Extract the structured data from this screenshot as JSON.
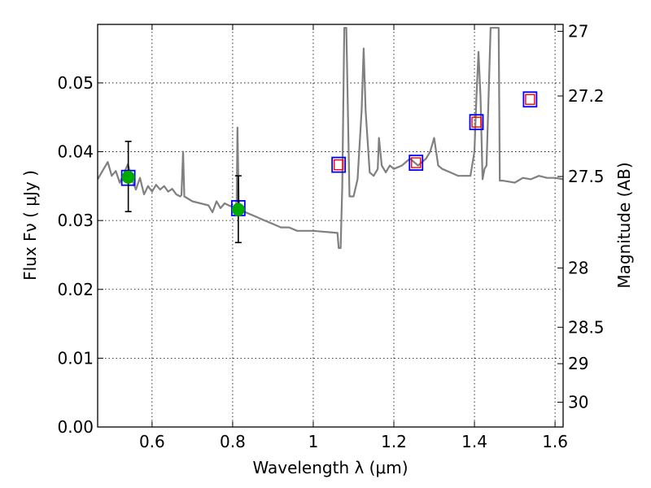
{
  "chart_data": {
    "type": "line",
    "xlabel": "Wavelength  λ (μm)",
    "ylabel": "Flux  Fν  ( μJy )",
    "y2label": "Magnitude (AB)",
    "xlim": [
      0.465,
      1.62
    ],
    "ylim": [
      0.0,
      0.0585
    ],
    "grid": true,
    "x_ticks": [
      0.6,
      0.8,
      1.0,
      1.2,
      1.4,
      1.6
    ],
    "x_tick_labels": [
      "0.6",
      "0.8",
      "1",
      "1.2",
      "1.4",
      "1.6"
    ],
    "y_ticks": [
      0.0,
      0.01,
      0.02,
      0.03,
      0.04,
      0.05
    ],
    "y_tick_labels": [
      "0.00",
      "0.01",
      "0.02",
      "0.03",
      "0.04",
      "0.05"
    ],
    "y2_ticks": [
      {
        "label": "27",
        "flux": 0.0575
      },
      {
        "label": "27.2",
        "flux": 0.0481
      },
      {
        "label": "27.5",
        "flux": 0.0364
      },
      {
        "label": "28",
        "flux": 0.0231
      },
      {
        "label": "28.5",
        "flux": 0.0145
      },
      {
        "label": "29",
        "flux": 0.0092
      },
      {
        "label": "30",
        "flux": 0.0036
      }
    ],
    "series": [
      {
        "kind": "sed_model",
        "color": "#808080",
        "x": [
          0.465,
          0.48,
          0.49,
          0.5,
          0.51,
          0.52,
          0.53,
          0.54,
          0.55,
          0.56,
          0.57,
          0.58,
          0.59,
          0.6,
          0.61,
          0.62,
          0.63,
          0.64,
          0.65,
          0.66,
          0.67,
          0.673,
          0.677,
          0.68,
          0.7,
          0.72,
          0.74,
          0.75,
          0.76,
          0.77,
          0.78,
          0.79,
          0.8,
          0.805,
          0.81,
          0.812,
          0.815,
          0.82,
          0.84,
          0.86,
          0.88,
          0.9,
          0.92,
          0.94,
          0.96,
          0.98,
          1.0,
          1.02,
          1.04,
          1.06,
          1.063,
          1.068,
          1.072,
          1.077,
          1.082,
          1.09,
          1.1,
          1.11,
          1.12,
          1.125,
          1.13,
          1.14,
          1.15,
          1.16,
          1.163,
          1.17,
          1.18,
          1.19,
          1.2,
          1.22,
          1.24,
          1.26,
          1.28,
          1.29,
          1.3,
          1.31,
          1.32,
          1.34,
          1.36,
          1.38,
          1.39,
          1.4,
          1.405,
          1.41,
          1.415,
          1.42,
          1.425,
          1.43,
          1.44,
          1.45,
          1.46,
          1.463,
          1.466,
          1.47,
          1.5,
          1.52,
          1.54,
          1.56,
          1.58,
          1.6,
          1.62
        ],
        "y": [
          0.036,
          0.0375,
          0.0385,
          0.0365,
          0.0372,
          0.0355,
          0.0368,
          0.0382,
          0.036,
          0.0345,
          0.0362,
          0.0338,
          0.035,
          0.0342,
          0.0352,
          0.0345,
          0.035,
          0.0342,
          0.0346,
          0.0338,
          0.0335,
          0.0337,
          0.04,
          0.0335,
          0.0328,
          0.0325,
          0.0322,
          0.0312,
          0.0328,
          0.0318,
          0.0325,
          0.0322,
          0.032,
          0.0318,
          0.0328,
          0.0435,
          0.033,
          0.0315,
          0.031,
          0.0305,
          0.03,
          0.0295,
          0.029,
          0.029,
          0.0285,
          0.0285,
          0.0285,
          0.0284,
          0.0283,
          0.0282,
          0.026,
          0.026,
          0.035,
          0.058,
          0.058,
          0.0335,
          0.0335,
          0.036,
          0.046,
          0.055,
          0.046,
          0.037,
          0.0365,
          0.0375,
          0.042,
          0.038,
          0.037,
          0.038,
          0.0375,
          0.038,
          0.039,
          0.038,
          0.039,
          0.04,
          0.042,
          0.038,
          0.0375,
          0.037,
          0.0365,
          0.0365,
          0.0365,
          0.04,
          0.048,
          0.0545,
          0.048,
          0.036,
          0.0375,
          0.038,
          0.058,
          0.058,
          0.058,
          0.0358,
          0.0358,
          0.0358,
          0.0355,
          0.0362,
          0.036,
          0.0365,
          0.0362,
          0.0362,
          0.036
        ]
      },
      {
        "kind": "observed",
        "color": "#00aa00",
        "points": [
          {
            "x": 0.541,
            "y": 0.0363,
            "yerr_low": 0.0313,
            "yerr_high": 0.0415
          },
          {
            "x": 0.814,
            "y": 0.0316,
            "yerr_low": 0.0268,
            "yerr_high": 0.0365
          }
        ]
      },
      {
        "kind": "model_photometry",
        "color": "#0000ff",
        "points": [
          {
            "x": 0.541,
            "y": 0.0362
          },
          {
            "x": 0.814,
            "y": 0.0318
          },
          {
            "x": 1.063,
            "y": 0.0381
          },
          {
            "x": 1.255,
            "y": 0.0384
          },
          {
            "x": 1.405,
            "y": 0.0443
          },
          {
            "x": 1.538,
            "y": 0.0476
          }
        ]
      },
      {
        "kind": "observed_upper",
        "color": "#ff0000",
        "points": [
          {
            "x": 1.063,
            "y": 0.0381
          },
          {
            "x": 1.255,
            "y": 0.0384
          },
          {
            "x": 1.405,
            "y": 0.0443
          },
          {
            "x": 1.538,
            "y": 0.0476
          }
        ]
      }
    ]
  }
}
